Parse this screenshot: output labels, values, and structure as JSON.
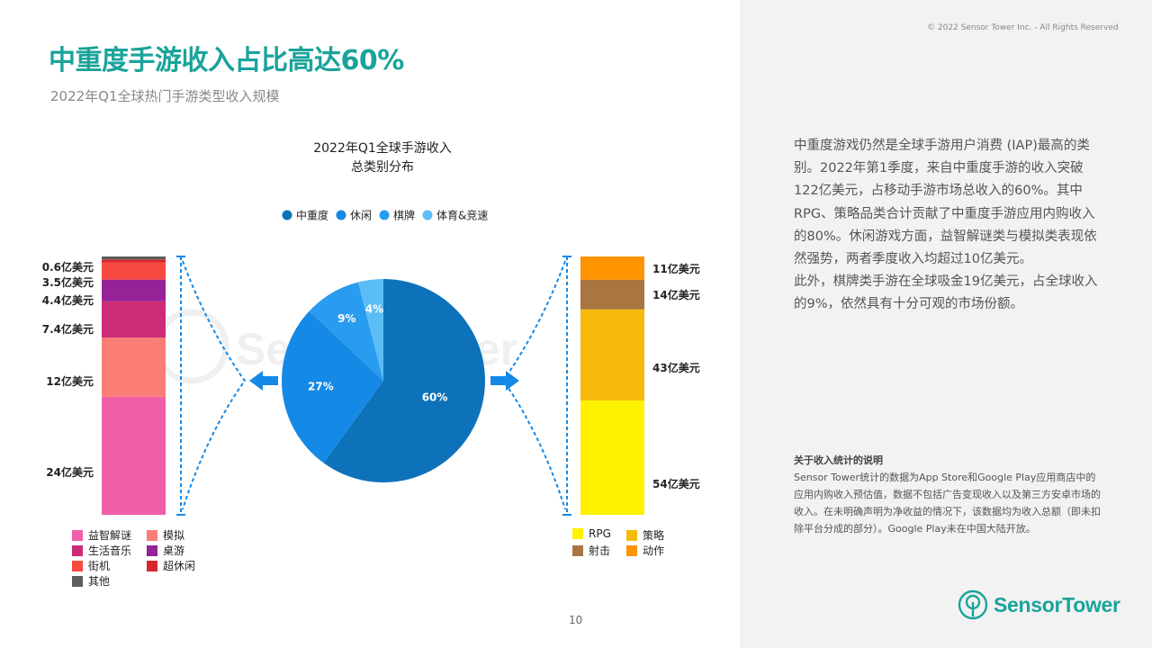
{
  "header": {
    "title": "中重度手游收入占比高达60%",
    "subtitle": "2022年Q1全球热门手游类型收入规模",
    "copyright": "© 2022 Sensor Tower Inc. - All Rights Reserved"
  },
  "page_number": "10",
  "body": {
    "paragraph1": "中重度游戏仍然是全球手游用户消费 (IAP)最高的类别。2022年第1季度，来自中重度手游的收入突破122亿美元，占移动手游市场总收入的60%。其中RPG、策略品类合计贡献了中重度手游应用内购收入的80%。休闲游戏方面，益智解谜类与模拟类表现依然强势，两者季度收入均超过10亿美元。",
    "paragraph2": "此外，棋牌类手游在全球吸金19亿美元，占全球收入的9%，依然具有十分可观的市场份额。"
  },
  "note": {
    "title": "关于收入统计的说明",
    "text": "Sensor Tower统计的数据为App Store和Google Play应用商店中的应用内购收入预估值，数据不包括广告变现收入以及第三方安卓市场的收入。在未明确声明为净收益的情况下，该数据均为收入总额（即未扣除平台分成的部分）。Google Play未在中国大陆开放。"
  },
  "logo": {
    "text": "SensorTower",
    "icon": "sensor-tower-logo-icon",
    "color": "#1aa39a"
  },
  "colors": {
    "accent": "#1aa39a",
    "panel": "#f2f2f2"
  },
  "chart_data": [
    {
      "type": "pie",
      "title_line1": "2022年Q1全球手游收入",
      "title_line2": "总类别分布",
      "series": [
        {
          "name": "中重度",
          "value": 60,
          "label": "60%",
          "color": "#0d72b9"
        },
        {
          "name": "休闲",
          "value": 27,
          "label": "27%",
          "color": "#1589e6"
        },
        {
          "name": "棋牌",
          "value": 9,
          "label": "9%",
          "color": "#2a9cf0"
        },
        {
          "name": "体育&竞速",
          "value": 4,
          "label": "4%",
          "color": "#5bbdf5"
        }
      ]
    },
    {
      "type": "bar",
      "stacked": true,
      "unit": "亿美元",
      "segments": [
        {
          "name": "益智解谜",
          "value": 24,
          "label": "24亿美元",
          "color": "#f05fa8"
        },
        {
          "name": "模拟",
          "value": 12,
          "label": "12亿美元",
          "color": "#fa7d76"
        },
        {
          "name": "生活音乐",
          "value": 7.4,
          "label": "7.4亿美元",
          "color": "#cc2b76"
        },
        {
          "name": "桌游",
          "value": 4.4,
          "label": "4.4亿美元",
          "color": "#952296"
        },
        {
          "name": "街机",
          "value": 3.5,
          "label": "3.5亿美元",
          "color": "#f64a41"
        },
        {
          "name": "超休闲",
          "value": 0.6,
          "label": "0.6亿美元",
          "color": "#d8262b"
        },
        {
          "name": "其他",
          "value": 0.6,
          "label": "",
          "color": "#5d5d5d"
        }
      ]
    },
    {
      "type": "bar",
      "stacked": true,
      "unit": "亿美元",
      "segments": [
        {
          "name": "RPG",
          "value": 54,
          "label": "54亿美元",
          "color": "#fff200"
        },
        {
          "name": "策略",
          "value": 43,
          "label": "43亿美元",
          "color": "#f7b90a"
        },
        {
          "name": "射击",
          "value": 14,
          "label": "14亿美元",
          "color": "#a97641"
        },
        {
          "name": "动作",
          "value": 11,
          "label": "11亿美元",
          "color": "#ff9300"
        }
      ]
    }
  ]
}
